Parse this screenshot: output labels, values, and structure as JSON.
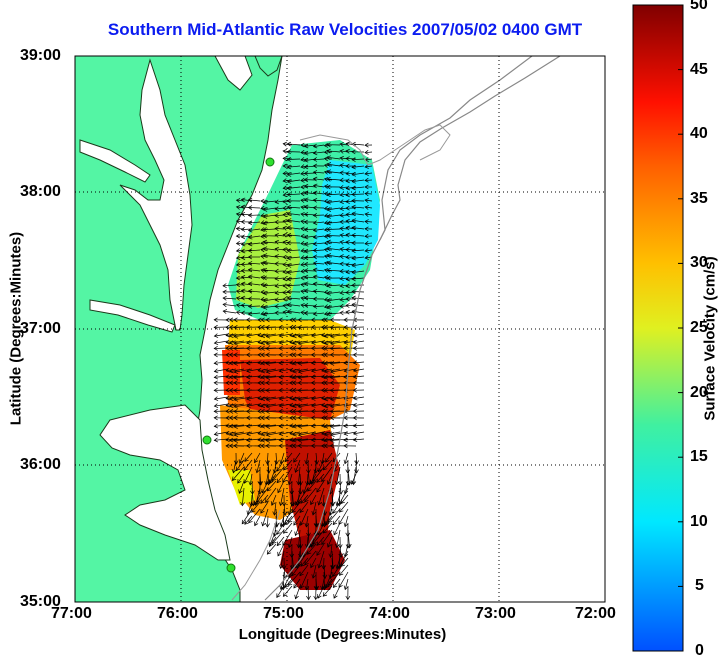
{
  "title": "Southern Mid-Atlantic Raw Velocities 2007/05/02 0400 GMT",
  "axes": {
    "xlabel": "Longitude (Degrees:Minutes)",
    "ylabel": "Latitude (Degrees:Minutes)",
    "x_ticks": [
      "77:00",
      "76:00",
      "75:00",
      "74:00",
      "73:00",
      "72:00"
    ],
    "y_ticks": [
      "39:00",
      "38:00",
      "37:00",
      "36:00",
      "35:00"
    ]
  },
  "colorbar": {
    "label": "Surface Velocity (cm/s)",
    "ticks": [
      "0",
      "5",
      "10",
      "15",
      "20",
      "25",
      "30",
      "35",
      "40",
      "45",
      "50"
    ]
  },
  "colors": {
    "land": "#54f5a4",
    "coast": "#1a3a1a",
    "vector": "#000000",
    "title": "#0b1cf0",
    "grid": "#000000",
    "station": "#2fe02f"
  }
}
